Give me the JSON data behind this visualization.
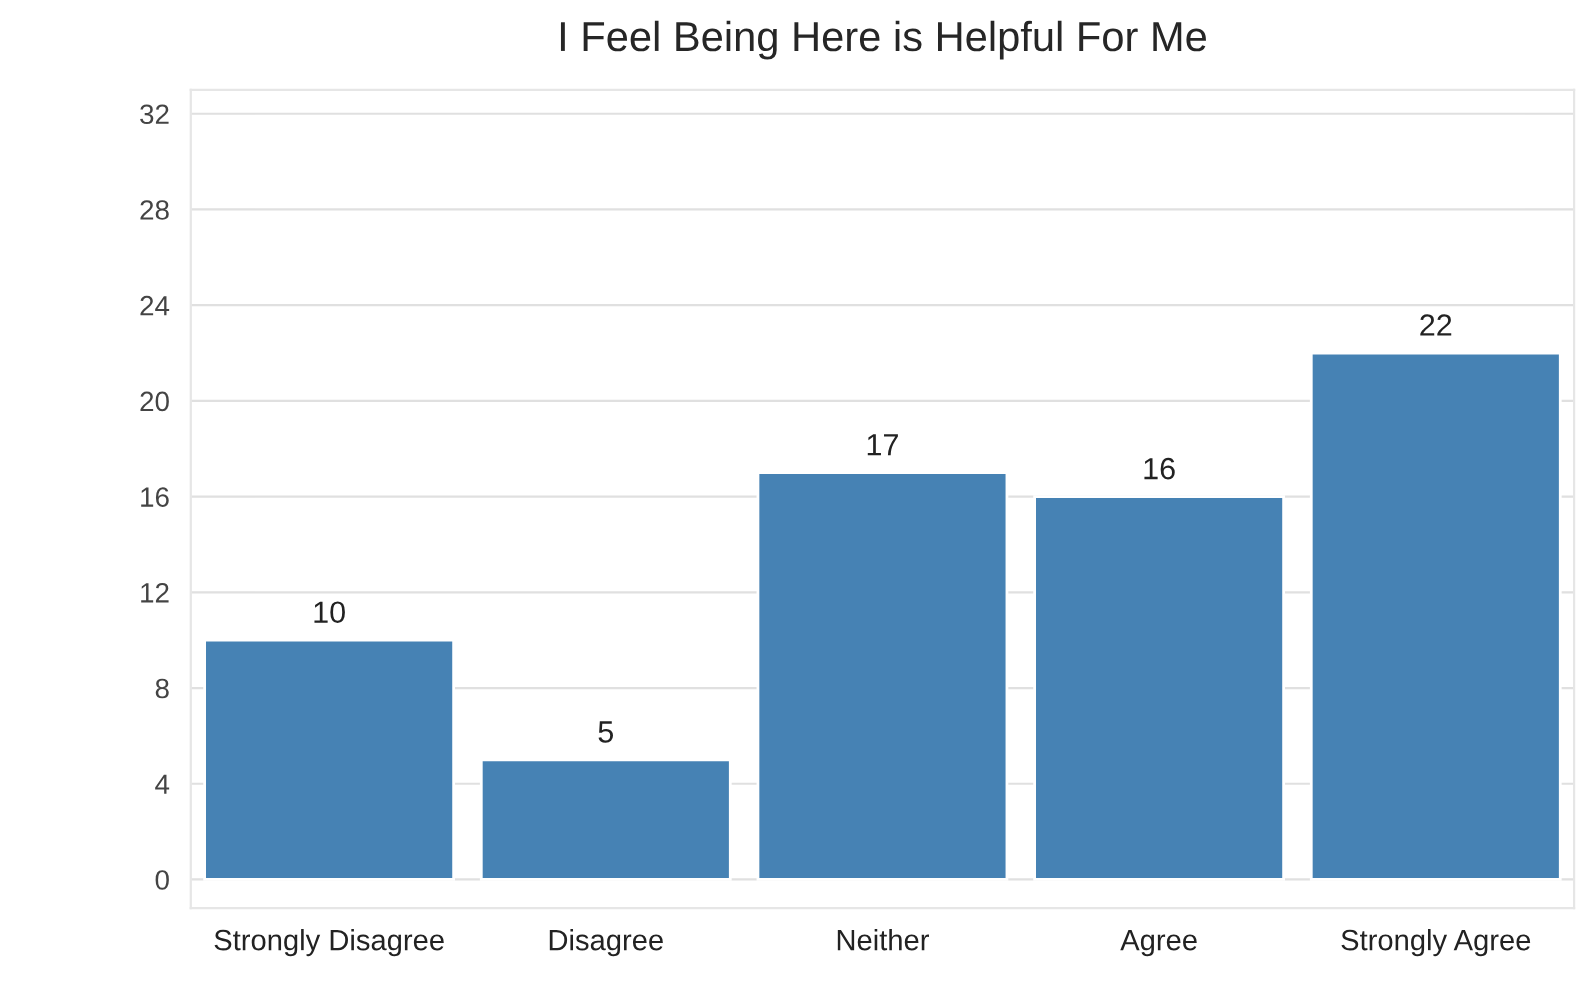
{
  "chart_data": {
    "type": "bar",
    "title": "I Feel Being Here is Helpful For Me",
    "categories": [
      "Strongly Disagree",
      "Disagree",
      "Neither",
      "Agree",
      "Strongly Agree"
    ],
    "values": [
      10,
      5,
      17,
      16,
      22
    ],
    "color": "#4682b4",
    "ylim": [
      -1.2,
      33
    ],
    "yticks": [
      0,
      4,
      8,
      12,
      16,
      20,
      24,
      28,
      32
    ],
    "grid": "y",
    "data_labels": true
  }
}
